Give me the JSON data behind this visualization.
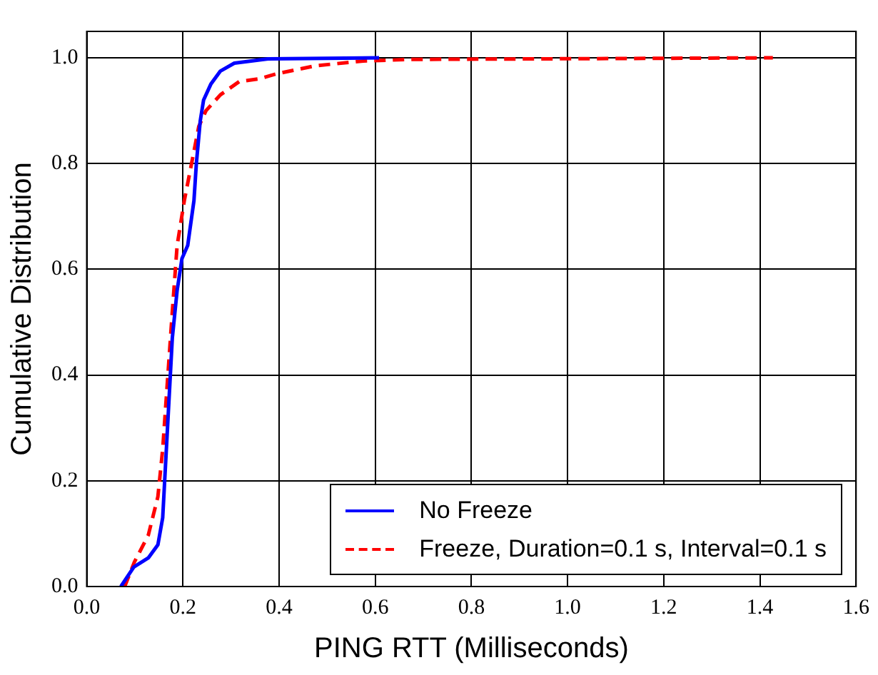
{
  "chart_data": {
    "type": "line",
    "xlabel": "PING RTT (Milliseconds)",
    "ylabel": "Cumulative Distribution",
    "xlim": [
      0,
      1.6
    ],
    "ylim": [
      0,
      1.05
    ],
    "xticks": [
      {
        "value": 0,
        "label": "0.0"
      },
      {
        "value": 0.2,
        "label": "0.2"
      },
      {
        "value": 0.4,
        "label": "0.4"
      },
      {
        "value": 0.6,
        "label": "0.6"
      },
      {
        "value": 0.8,
        "label": "0.8"
      },
      {
        "value": 1.0,
        "label": "1.0"
      },
      {
        "value": 1.2,
        "label": "1.2"
      },
      {
        "value": 1.4,
        "label": "1.4"
      },
      {
        "value": 1.6,
        "label": "1.6"
      }
    ],
    "yticks": [
      {
        "value": 0,
        "label": "0.0"
      },
      {
        "value": 0.2,
        "label": "0.2"
      },
      {
        "value": 0.4,
        "label": "0.4"
      },
      {
        "value": 0.6,
        "label": "0.6"
      },
      {
        "value": 0.8,
        "label": "0.8"
      },
      {
        "value": 1.0,
        "label": "1.0"
      }
    ],
    "grid": true,
    "legend": "bottom right",
    "marker": "none",
    "series": [
      {
        "name": "No Freeze",
        "color": "#0000ff",
        "line_style": "solid",
        "x": [
          0.071,
          0.098,
          0.128,
          0.148,
          0.158,
          0.168,
          0.178,
          0.188,
          0.198,
          0.21,
          0.223,
          0.228,
          0.236,
          0.243,
          0.258,
          0.278,
          0.307,
          0.377,
          0.608
        ],
        "values": [
          0,
          0.037,
          0.054,
          0.079,
          0.13,
          0.3,
          0.47,
          0.56,
          0.62,
          0.645,
          0.73,
          0.8,
          0.88,
          0.92,
          0.95,
          0.975,
          0.99,
          0.998,
          1.0
        ]
      },
      {
        "name": "Freeze, Duration=0.1 s, Interval=0.1 s",
        "color": "#ff0000",
        "line_style": "dashed",
        "x": [
          0.079,
          0.099,
          0.128,
          0.148,
          0.158,
          0.168,
          0.178,
          0.188,
          0.203,
          0.218,
          0.233,
          0.248,
          0.278,
          0.317,
          0.357,
          0.396,
          0.476,
          0.575,
          0.675,
          1.427
        ],
        "values": [
          0,
          0.046,
          0.097,
          0.17,
          0.26,
          0.39,
          0.52,
          0.645,
          0.73,
          0.8,
          0.87,
          0.9,
          0.93,
          0.955,
          0.96,
          0.97,
          0.985,
          0.994,
          0.997,
          1.0
        ]
      }
    ]
  }
}
